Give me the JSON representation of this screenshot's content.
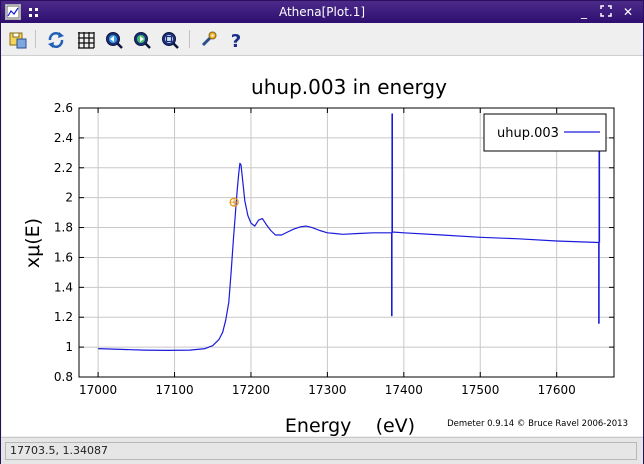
{
  "window": {
    "title": "Athena[Plot.1]",
    "minimize_glyph": "_",
    "maximize_glyph": "⛶",
    "close_glyph": "✕"
  },
  "toolbar": {
    "items": [
      {
        "name": "save-icon"
      },
      {
        "name": "refresh-icon"
      },
      {
        "name": "grid-icon"
      },
      {
        "name": "zoom-in-icon"
      },
      {
        "name": "zoom-out-icon"
      },
      {
        "name": "zoom-reset-icon"
      },
      {
        "name": "settings-wrench-icon"
      },
      {
        "name": "help-icon"
      }
    ]
  },
  "status": {
    "text": "17703.5, 1.34087"
  },
  "chart_data": {
    "type": "line",
    "title": "uhup.003 in energy",
    "xlabel": "Energy    (eV)",
    "ylabel": "xμ(E)",
    "footer": "Demeter 0.9.14 © Bruce Ravel 2006-2013",
    "xlim": [
      16975,
      17675
    ],
    "ylim": [
      0.8,
      2.6
    ],
    "xticks": [
      17000,
      17100,
      17200,
      17300,
      17400,
      17500,
      17600
    ],
    "yticks": [
      0.8,
      1,
      1.2,
      1.4,
      1.6,
      1.8,
      2,
      2.2,
      2.4,
      2.6
    ],
    "grid": true,
    "legend_position": "top-right",
    "marker": {
      "x": 17178,
      "y": 1.97,
      "color": "#e69a1a"
    },
    "series": [
      {
        "name": "uhup.003",
        "color": "#1a1adc",
        "x": [
          17000,
          17030,
          17060,
          17090,
          17120,
          17140,
          17150,
          17158,
          17163,
          17167,
          17171,
          17174,
          17177,
          17180,
          17182,
          17184,
          17185.5,
          17187,
          17189,
          17192,
          17196,
          17200,
          17205,
          17210,
          17215,
          17220,
          17226,
          17232,
          17240,
          17248,
          17256,
          17265,
          17272,
          17280,
          17290,
          17300,
          17310,
          17320,
          17340,
          17360,
          17384,
          17384,
          17384.5,
          17384.5,
          17385,
          17385,
          17400,
          17450,
          17500,
          17550,
          17600,
          17655,
          17655,
          17655.5,
          17655.5,
          17656,
          17656
        ],
        "y": [
          0.99,
          0.985,
          0.98,
          0.978,
          0.98,
          0.99,
          1.01,
          1.05,
          1.1,
          1.18,
          1.3,
          1.5,
          1.72,
          1.92,
          2.05,
          2.16,
          2.23,
          2.22,
          2.12,
          1.98,
          1.88,
          1.83,
          1.81,
          1.85,
          1.86,
          1.82,
          1.78,
          1.75,
          1.75,
          1.77,
          1.79,
          1.805,
          1.81,
          1.8,
          1.78,
          1.765,
          1.76,
          1.755,
          1.76,
          1.765,
          1.765,
          1.21,
          1.21,
          2.56,
          2.56,
          1.77,
          1.765,
          1.75,
          1.735,
          1.725,
          1.71,
          1.7,
          1.16,
          1.16,
          2.46,
          2.46,
          1.7
        ]
      }
    ]
  }
}
